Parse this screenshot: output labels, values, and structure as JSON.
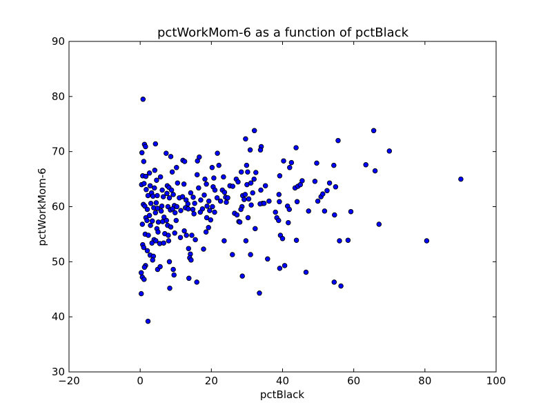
{
  "chart_data": {
    "type": "scatter",
    "title": "pctWorkMom-6 as a function of pctBlack",
    "xlabel": "pctBlack",
    "ylabel": "pctWorkMom-6",
    "xlim": [
      -20,
      100
    ],
    "ylim": [
      30,
      90
    ],
    "xticks": [
      -20,
      0,
      20,
      40,
      60,
      80,
      100
    ],
    "yticks": [
      30,
      40,
      50,
      60,
      70,
      80,
      90
    ],
    "xtick_labels": [
      "−20",
      "0",
      "20",
      "40",
      "60",
      "80",
      "100"
    ],
    "ytick_labels": [
      "30",
      "40",
      "50",
      "60",
      "70",
      "80",
      "90"
    ],
    "grid": false,
    "marker_color": "#0000ff",
    "points": [
      [
        0.8,
        79.5
      ],
      [
        0.5,
        69.8
      ],
      [
        1.2,
        71.3
      ],
      [
        1.5,
        70.9
      ],
      [
        1.0,
        68.2
      ],
      [
        0.7,
        65.6
      ],
      [
        1.6,
        65.5
      ],
      [
        0.4,
        64.0
      ],
      [
        1.1,
        64.2
      ],
      [
        1.7,
        63.1
      ],
      [
        2.2,
        62.0
      ],
      [
        0.9,
        60.4
      ],
      [
        1.3,
        60.1
      ],
      [
        2.0,
        59.5
      ],
      [
        1.6,
        58.0
      ],
      [
        1.9,
        57.5
      ],
      [
        0.6,
        56.8
      ],
      [
        1.4,
        55.0
      ],
      [
        2.3,
        54.8
      ],
      [
        0.7,
        53.1
      ],
      [
        1.0,
        52.6
      ],
      [
        2.0,
        52.0
      ],
      [
        1.5,
        49.3
      ],
      [
        1.2,
        49.0
      ],
      [
        0.3,
        48.0
      ],
      [
        0.6,
        47.2
      ],
      [
        1.1,
        46.8
      ],
      [
        0.3,
        44.2
      ],
      [
        2.2,
        39.2
      ],
      [
        2.6,
        66.1
      ],
      [
        2.8,
        63.8
      ],
      [
        3.2,
        62.5
      ],
      [
        3.6,
        61.9
      ],
      [
        3.0,
        60.6
      ],
      [
        3.8,
        59.8
      ],
      [
        2.6,
        58.4
      ],
      [
        3.4,
        57.4
      ],
      [
        2.9,
        56.6
      ],
      [
        3.9,
        54.0
      ],
      [
        3.3,
        53.4
      ],
      [
        2.8,
        51.2
      ],
      [
        3.7,
        51.0
      ],
      [
        3.5,
        50.3
      ],
      [
        4.3,
        71.4
      ],
      [
        4.1,
        66.6
      ],
      [
        4.6,
        64.8
      ],
      [
        4.0,
        63.4
      ],
      [
        4.8,
        62.0
      ],
      [
        4.5,
        60.7
      ],
      [
        4.9,
        59.7
      ],
      [
        4.3,
        58.9
      ],
      [
        5.1,
        57.2
      ],
      [
        4.7,
        56.0
      ],
      [
        5.0,
        55.4
      ],
      [
        4.4,
        53.8
      ],
      [
        5.5,
        53.3
      ],
      [
        4.9,
        48.6
      ],
      [
        5.6,
        49.1
      ],
      [
        5.7,
        65.4
      ],
      [
        6.2,
        63.0
      ],
      [
        6.5,
        61.8
      ],
      [
        6.1,
        60.1
      ],
      [
        5.9,
        59.2
      ],
      [
        6.7,
        58.1
      ],
      [
        6.3,
        57.3
      ],
      [
        6.9,
        55.1
      ],
      [
        6.6,
        53.4
      ],
      [
        7.3,
        69.7
      ],
      [
        7.6,
        63.8
      ],
      [
        8.1,
        63.5
      ],
      [
        7.5,
        62.4
      ],
      [
        8.2,
        61.6
      ],
      [
        7.8,
        60.0
      ],
      [
        8.5,
        59.4
      ],
      [
        7.4,
        57.5
      ],
      [
        7.7,
        56.6
      ],
      [
        8.6,
        56.3
      ],
      [
        7.9,
        54.8
      ],
      [
        8.0,
        53.8
      ],
      [
        8.2,
        50.0
      ],
      [
        8.3,
        45.2
      ],
      [
        8.6,
        69.1
      ],
      [
        9.0,
        66.3
      ],
      [
        8.8,
        63.0
      ],
      [
        9.3,
        62.2
      ],
      [
        9.6,
        60.2
      ],
      [
        9.1,
        59.6
      ],
      [
        9.8,
        58.9
      ],
      [
        9.3,
        48.6
      ],
      [
        9.5,
        47.6
      ],
      [
        10.2,
        67.1
      ],
      [
        10.5,
        64.3
      ],
      [
        11.0,
        61.6
      ],
      [
        10.3,
        60.0
      ],
      [
        11.4,
        59.3
      ],
      [
        10.1,
        57.5
      ],
      [
        9.7,
        55.2
      ],
      [
        11.3,
        54.4
      ],
      [
        12.0,
        68.4
      ],
      [
        12.5,
        68.2
      ],
      [
        12.3,
        64.1
      ],
      [
        11.9,
        61.8
      ],
      [
        12.9,
        61.2
      ],
      [
        13.4,
        60.5
      ],
      [
        12.7,
        59.8
      ],
      [
        13.5,
        59.6
      ],
      [
        12.4,
        55.6
      ],
      [
        13.0,
        54.8
      ],
      [
        13.6,
        52.4
      ],
      [
        14.1,
        51.4
      ],
      [
        13.9,
        50.7
      ],
      [
        14.3,
        50.3
      ],
      [
        13.7,
        47.0
      ],
      [
        14.2,
        62.5
      ],
      [
        14.9,
        61.7
      ],
      [
        15.3,
        60.6
      ],
      [
        14.8,
        59.5
      ],
      [
        15.1,
        58.7
      ],
      [
        14.5,
        54.8
      ],
      [
        15.5,
        54.0
      ],
      [
        16.1,
        68.3
      ],
      [
        16.6,
        69.0
      ],
      [
        16.0,
        65.8
      ],
      [
        16.4,
        63.4
      ],
      [
        17.0,
        61.2
      ],
      [
        17.5,
        59.6
      ],
      [
        16.9,
        59.0
      ],
      [
        17.8,
        52.3
      ],
      [
        15.9,
        46.3
      ],
      [
        18.2,
        65.0
      ],
      [
        18.6,
        64.1
      ],
      [
        18.0,
        62.1
      ],
      [
        19.3,
        61.0
      ],
      [
        18.8,
        60.1
      ],
      [
        19.5,
        59.3
      ],
      [
        18.7,
        58.0
      ],
      [
        19.8,
        57.6
      ],
      [
        19.2,
        56.2
      ],
      [
        18.5,
        55.4
      ],
      [
        20.2,
        67.1
      ],
      [
        20.7,
        65.2
      ],
      [
        20.5,
        63.6
      ],
      [
        21.0,
        63.0
      ],
      [
        20.3,
        60.0
      ],
      [
        20.9,
        59.0
      ],
      [
        21.7,
        69.7
      ],
      [
        22.1,
        67.5
      ],
      [
        21.6,
        61.6
      ],
      [
        22.6,
        61.0
      ],
      [
        23.4,
        65.4
      ],
      [
        23.1,
        63.0
      ],
      [
        23.7,
        62.6
      ],
      [
        24.0,
        61.7
      ],
      [
        24.6,
        61.6
      ],
      [
        24.2,
        60.8
      ],
      [
        23.6,
        53.8
      ],
      [
        25.2,
        63.8
      ],
      [
        26.0,
        63.7
      ],
      [
        25.9,
        51.3
      ],
      [
        26.5,
        58.8
      ],
      [
        27.0,
        65.0
      ],
      [
        27.5,
        64.5
      ],
      [
        27.2,
        58.5
      ],
      [
        27.7,
        57.3
      ],
      [
        28.0,
        57.2
      ],
      [
        28.4,
        66.3
      ],
      [
        28.8,
        62.0
      ],
      [
        29.2,
        61.3
      ],
      [
        28.6,
        60.0
      ],
      [
        28.3,
        59.5
      ],
      [
        28.7,
        47.4
      ],
      [
        29.6,
        72.3
      ],
      [
        29.9,
        67.5
      ],
      [
        30.2,
        66.3
      ],
      [
        30.0,
        64.0
      ],
      [
        29.5,
        62.2
      ],
      [
        30.5,
        61.4
      ],
      [
        30.3,
        58.0
      ],
      [
        29.7,
        53.8
      ],
      [
        30.9,
        70.3
      ],
      [
        31.1,
        64.3
      ],
      [
        31.6,
        62.5
      ],
      [
        31.2,
        60.3
      ],
      [
        31.0,
        51.3
      ],
      [
        32.1,
        73.8
      ],
      [
        32.5,
        66.2
      ],
      [
        32.0,
        65.0
      ],
      [
        32.3,
        56.0
      ],
      [
        33.5,
        44.3
      ],
      [
        34.0,
        70.9
      ],
      [
        33.8,
        70.3
      ],
      [
        33.9,
        63.0
      ],
      [
        34.4,
        60.6
      ],
      [
        33.7,
        60.5
      ],
      [
        35.2,
        63.8
      ],
      [
        34.8,
        60.6
      ],
      [
        36.2,
        61.0
      ],
      [
        35.8,
        50.5
      ],
      [
        38.0,
        59.0
      ],
      [
        38.4,
        58.0
      ],
      [
        38.9,
        57.5
      ],
      [
        39.2,
        65.6
      ],
      [
        39.0,
        62.2
      ],
      [
        39.1,
        60.9
      ],
      [
        39.4,
        54.8
      ],
      [
        39.2,
        48.8
      ],
      [
        40.3,
        68.3
      ],
      [
        40.0,
        54.2
      ],
      [
        40.6,
        49.3
      ],
      [
        41.4,
        60.1
      ],
      [
        41.9,
        59.5
      ],
      [
        42.0,
        67.1
      ],
      [
        42.5,
        68.0
      ],
      [
        41.6,
        57.1
      ],
      [
        43.8,
        70.7
      ],
      [
        43.5,
        63.4
      ],
      [
        44.1,
        60.9
      ],
      [
        44.3,
        63.7
      ],
      [
        43.9,
        53.9
      ],
      [
        45.0,
        64.0
      ],
      [
        45.5,
        64.7
      ],
      [
        46.6,
        48.1
      ],
      [
        47.3,
        59.2
      ],
      [
        49.1,
        64.6
      ],
      [
        49.6,
        67.9
      ],
      [
        49.9,
        61.0
      ],
      [
        50.8,
        61.8
      ],
      [
        51.3,
        62.3
      ],
      [
        51.8,
        59.2
      ],
      [
        52.5,
        62.9
      ],
      [
        53.2,
        64.3
      ],
      [
        54.4,
        67.5
      ],
      [
        54.9,
        63.6
      ],
      [
        54.6,
        58.5
      ],
      [
        54.5,
        46.3
      ],
      [
        55.6,
        72.0
      ],
      [
        56.0,
        53.8
      ],
      [
        56.4,
        45.6
      ],
      [
        58.4,
        53.9
      ],
      [
        59.2,
        59.1
      ],
      [
        63.4,
        67.6
      ],
      [
        65.6,
        73.8
      ],
      [
        66.0,
        66.5
      ],
      [
        67.1,
        56.8
      ],
      [
        70.0,
        70.1
      ],
      [
        80.5,
        53.8
      ],
      [
        90.1,
        65.0
      ]
    ]
  }
}
